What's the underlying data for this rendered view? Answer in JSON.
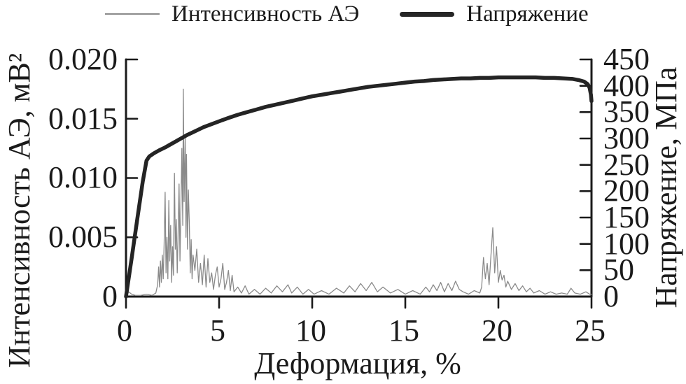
{
  "chart_data": {
    "type": "line",
    "title": "",
    "xlabel": "Деформация, %",
    "ylabel_left": "Интенсивность АЭ, мВ²",
    "ylabel_right": "Напряжение, МПа",
    "xlim": [
      0,
      25
    ],
    "xticks": [
      0,
      5,
      10,
      15,
      20,
      25
    ],
    "xticklabels": [
      "0",
      "5",
      "10",
      "15",
      "20",
      "25"
    ],
    "ylim_left": [
      0,
      0.02
    ],
    "yticks_left": [
      0.02,
      0.015,
      0.01,
      0.005,
      0
    ],
    "yticklabels_left": [
      "0.020",
      "0.015",
      "0.010",
      "0.005",
      "0"
    ],
    "ylim_right": [
      0,
      450
    ],
    "yticks_right": [
      450,
      400,
      350,
      300,
      250,
      200,
      150,
      100,
      50,
      0
    ],
    "yticklabels_right": [
      "450",
      "400",
      "350",
      "300",
      "250",
      "200",
      "150",
      "100",
      "50",
      "0"
    ],
    "grid": false,
    "legend_position": "top",
    "series": [
      {
        "name": "Интенсивность АЭ",
        "yaxis": "left",
        "color": "#8a8a8a",
        "line_width": 1.3,
        "points": [
          [
            0,
            0.0001
          ],
          [
            0.15,
            0.0004
          ],
          [
            0.3,
            0.0002
          ],
          [
            0.5,
            0.0001
          ],
          [
            0.8,
            0.0001
          ],
          [
            1.1,
            0.0002
          ],
          [
            1.4,
            0.0001
          ],
          [
            1.6,
            0.0003
          ],
          [
            1.7,
            0.001
          ],
          [
            1.75,
            0.0025
          ],
          [
            1.8,
            0.0008
          ],
          [
            1.85,
            0.003
          ],
          [
            1.9,
            0.0012
          ],
          [
            1.95,
            0.0035
          ],
          [
            2.0,
            0.0015
          ],
          [
            2.05,
            0.0045
          ],
          [
            2.1,
            0.0088
          ],
          [
            2.15,
            0.002
          ],
          [
            2.2,
            0.005
          ],
          [
            2.25,
            0.0015
          ],
          [
            2.3,
            0.0081
          ],
          [
            2.35,
            0.003
          ],
          [
            2.4,
            0.006
          ],
          [
            2.45,
            0.0012
          ],
          [
            2.5,
            0.0042
          ],
          [
            2.55,
            0.0018
          ],
          [
            2.6,
            0.0104
          ],
          [
            2.65,
            0.004
          ],
          [
            2.7,
            0.0065
          ],
          [
            2.75,
            0.002
          ],
          [
            2.8,
            0.0055
          ],
          [
            2.85,
            0.0095
          ],
          [
            2.9,
            0.003
          ],
          [
            2.95,
            0.0075
          ],
          [
            3.0,
            0.0125
          ],
          [
            3.05,
            0.006
          ],
          [
            3.08,
            0.0175
          ],
          [
            3.12,
            0.008
          ],
          [
            3.18,
            0.0135
          ],
          [
            3.22,
            0.005
          ],
          [
            3.25,
            0.012
          ],
          [
            3.3,
            0.004
          ],
          [
            3.35,
            0.009
          ],
          [
            3.4,
            0.0063
          ],
          [
            3.45,
            0.002
          ],
          [
            3.5,
            0.0048
          ],
          [
            3.55,
            0.0015
          ],
          [
            3.6,
            0.0035
          ],
          [
            3.7,
            0.0022
          ],
          [
            3.8,
            0.004
          ],
          [
            3.9,
            0.0012
          ],
          [
            4.0,
            0.0028
          ],
          [
            4.1,
            0.001
          ],
          [
            4.2,
            0.0035
          ],
          [
            4.3,
            0.0008
          ],
          [
            4.4,
            0.0032
          ],
          [
            4.5,
            0.0012
          ],
          [
            4.6,
            0.002
          ],
          [
            4.7,
            0.0006
          ],
          [
            4.8,
            0.0018
          ],
          [
            4.9,
            0.0025
          ],
          [
            5.0,
            0.0008
          ],
          [
            5.1,
            0.0015
          ],
          [
            5.2,
            0.0028
          ],
          [
            5.3,
            0.0006
          ],
          [
            5.4,
            0.0012
          ],
          [
            5.5,
            0.0022
          ],
          [
            5.6,
            0.0005
          ],
          [
            5.7,
            0.0018
          ],
          [
            5.8,
            0.0004
          ],
          [
            6.0,
            0.0008
          ],
          [
            6.2,
            0.0003
          ],
          [
            6.4,
            0.0009
          ],
          [
            6.6,
            0.0002
          ],
          [
            6.9,
            0.0006
          ],
          [
            7.2,
            0.0002
          ],
          [
            7.5,
            0.0007
          ],
          [
            7.8,
            0.0003
          ],
          [
            8.1,
            0.0009
          ],
          [
            8.4,
            0.0004
          ],
          [
            8.7,
            0.001
          ],
          [
            8.9,
            0.0003
          ],
          [
            9.2,
            0.0008
          ],
          [
            9.5,
            0.0002
          ],
          [
            9.8,
            0.0006
          ],
          [
            10.1,
            0.0002
          ],
          [
            10.5,
            0.0005
          ],
          [
            10.9,
            0.0002
          ],
          [
            11.3,
            0.0007
          ],
          [
            11.7,
            0.0003
          ],
          [
            12.0,
            0.0009
          ],
          [
            12.3,
            0.0004
          ],
          [
            12.6,
            0.0011
          ],
          [
            12.9,
            0.0005
          ],
          [
            13.2,
            0.0012
          ],
          [
            13.5,
            0.0004
          ],
          [
            13.8,
            0.0008
          ],
          [
            14.2,
            0.0003
          ],
          [
            14.6,
            0.0006
          ],
          [
            15.0,
            0.0002
          ],
          [
            15.4,
            0.0005
          ],
          [
            15.8,
            0.0002
          ],
          [
            16.1,
            0.0008
          ],
          [
            16.3,
            0.0004
          ],
          [
            16.5,
            0.001
          ],
          [
            16.7,
            0.0005
          ],
          [
            16.9,
            0.0012
          ],
          [
            17.1,
            0.0004
          ],
          [
            17.3,
            0.0011
          ],
          [
            17.5,
            0.0005
          ],
          [
            17.7,
            0.0013
          ],
          [
            17.9,
            0.0006
          ],
          [
            18.1,
            0.0004
          ],
          [
            18.4,
            0.0002
          ],
          [
            18.7,
            0.0005
          ],
          [
            19.0,
            0.0003
          ],
          [
            19.1,
            0.0008
          ],
          [
            19.2,
            0.0033
          ],
          [
            19.3,
            0.0015
          ],
          [
            19.4,
            0.0028
          ],
          [
            19.5,
            0.001
          ],
          [
            19.6,
            0.0035
          ],
          [
            19.7,
            0.0058
          ],
          [
            19.8,
            0.002
          ],
          [
            19.9,
            0.0042
          ],
          [
            20.0,
            0.0012
          ],
          [
            20.1,
            0.0022
          ],
          [
            20.2,
            0.0014
          ],
          [
            20.3,
            0.0018
          ],
          [
            20.4,
            0.0008
          ],
          [
            20.5,
            0.0013
          ],
          [
            20.7,
            0.0006
          ],
          [
            20.9,
            0.0011
          ],
          [
            21.1,
            0.0005
          ],
          [
            21.3,
            0.0009
          ],
          [
            21.5,
            0.0004
          ],
          [
            21.7,
            0.0007
          ],
          [
            21.9,
            0.0003
          ],
          [
            22.2,
            0.0005
          ],
          [
            22.5,
            0.0002
          ],
          [
            22.8,
            0.0004
          ],
          [
            23.1,
            0.0002
          ],
          [
            23.4,
            0.0003
          ],
          [
            23.7,
            0.0002
          ],
          [
            23.9,
            0.0007
          ],
          [
            24.1,
            0.0003
          ],
          [
            24.4,
            0.0002
          ],
          [
            24.7,
            0.0004
          ],
          [
            24.9,
            0.0002
          ],
          [
            25,
            0.0002
          ]
        ]
      },
      {
        "name": "Напряжение",
        "yaxis": "right",
        "color": "#242424",
        "line_width": 5.5,
        "points": [
          [
            0,
            0
          ],
          [
            0.3,
            72
          ],
          [
            0.6,
            146
          ],
          [
            0.9,
            218
          ],
          [
            1.1,
            258
          ],
          [
            1.25,
            266
          ],
          [
            1.5,
            272
          ],
          [
            1.8,
            278
          ],
          [
            2.1,
            283
          ],
          [
            2.4,
            289
          ],
          [
            2.7,
            295
          ],
          [
            3.0,
            301
          ],
          [
            3.3,
            307
          ],
          [
            3.6,
            312
          ],
          [
            3.9,
            317
          ],
          [
            4.2,
            322
          ],
          [
            4.5,
            326
          ],
          [
            4.8,
            330
          ],
          [
            5.1,
            334
          ],
          [
            5.5,
            339
          ],
          [
            6.0,
            345
          ],
          [
            6.5,
            350
          ],
          [
            7.0,
            355
          ],
          [
            7.5,
            360
          ],
          [
            8.0,
            364
          ],
          [
            8.5,
            368
          ],
          [
            9.0,
            372
          ],
          [
            9.5,
            376
          ],
          [
            10.0,
            380
          ],
          [
            10.5,
            383
          ],
          [
            11.0,
            386
          ],
          [
            11.5,
            389
          ],
          [
            12.0,
            392
          ],
          [
            12.5,
            395
          ],
          [
            13.0,
            398
          ],
          [
            13.5,
            400
          ],
          [
            14.0,
            402
          ],
          [
            14.5,
            404
          ],
          [
            15.0,
            406
          ],
          [
            15.5,
            408
          ],
          [
            16.0,
            409
          ],
          [
            16.5,
            411
          ],
          [
            17.0,
            412
          ],
          [
            17.5,
            413
          ],
          [
            18.0,
            414
          ],
          [
            18.5,
            414
          ],
          [
            19.0,
            415
          ],
          [
            19.5,
            415
          ],
          [
            20.0,
            416
          ],
          [
            20.5,
            416
          ],
          [
            21.0,
            416
          ],
          [
            21.5,
            416
          ],
          [
            22.0,
            416
          ],
          [
            22.5,
            415
          ],
          [
            23.0,
            415
          ],
          [
            23.5,
            414
          ],
          [
            24.0,
            413
          ],
          [
            24.3,
            411
          ],
          [
            24.6,
            408
          ],
          [
            24.8,
            403
          ],
          [
            24.9,
            396
          ],
          [
            24.97,
            383
          ],
          [
            25.0,
            371
          ]
        ]
      }
    ]
  }
}
